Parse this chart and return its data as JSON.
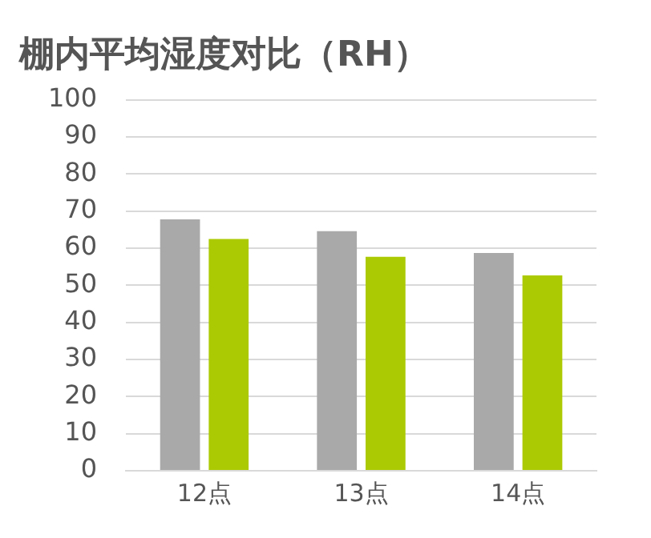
{
  "chart_data": {
    "type": "bar",
    "title": "棚内平均湿度对比（RH）",
    "categories": [
      "12点",
      "13点",
      "14点"
    ],
    "series": [
      {
        "color": "#a9a9a9",
        "values": [
          67.8,
          64.6,
          58.7
        ]
      },
      {
        "color": "#acca03",
        "values": [
          62.5,
          57.7,
          52.7
        ]
      }
    ],
    "ylim": [
      0,
      100
    ],
    "yticks": [
      0,
      10,
      20,
      30,
      40,
      50,
      60,
      70,
      80,
      90,
      100
    ],
    "grid": "y",
    "legend": false
  }
}
